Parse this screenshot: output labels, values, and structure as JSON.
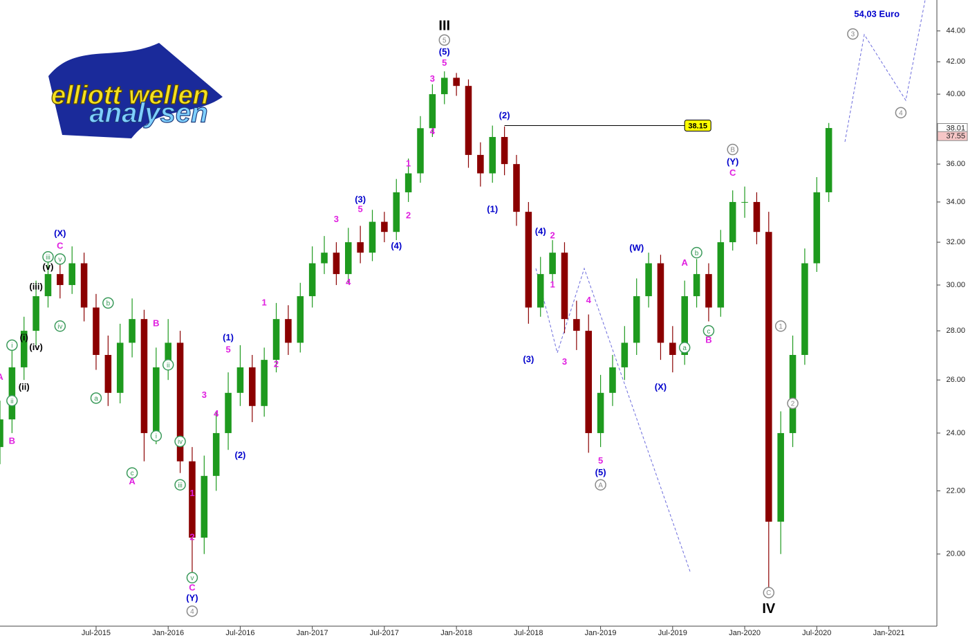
{
  "logo": {
    "line1": "elliott wellen",
    "line2": "analysen"
  },
  "chart_data": {
    "type": "candlestick",
    "x": [
      "2014-11",
      "2014-12",
      "2015-01",
      "2015-02",
      "2015-03",
      "2015-04",
      "2015-05",
      "2015-06",
      "2015-07",
      "2015-08",
      "2015-09",
      "2015-10",
      "2015-11",
      "2015-12",
      "2016-01",
      "2016-02",
      "2016-03",
      "2016-04",
      "2016-05",
      "2016-06",
      "2016-07",
      "2016-08",
      "2016-09",
      "2016-10",
      "2016-11",
      "2016-12",
      "2017-01",
      "2017-02",
      "2017-03",
      "2017-04",
      "2017-05",
      "2017-06",
      "2017-07",
      "2017-08",
      "2017-09",
      "2017-10",
      "2017-11",
      "2017-12",
      "2018-01",
      "2018-02",
      "2018-03",
      "2018-04",
      "2018-05",
      "2018-06",
      "2018-07",
      "2018-08",
      "2018-09",
      "2018-10",
      "2018-11",
      "2018-12",
      "2019-01",
      "2019-02",
      "2019-03",
      "2019-04",
      "2019-05",
      "2019-06",
      "2019-07",
      "2019-08",
      "2019-09",
      "2019-10",
      "2019-11",
      "2019-12",
      "2020-01",
      "2020-02",
      "2020-03",
      "2020-04",
      "2020-05",
      "2020-06",
      "2020-07",
      "2020-08"
    ],
    "open": [
      23.5,
      24.5,
      26.5,
      28,
      29.5,
      30.5,
      30,
      31,
      29,
      27,
      25.5,
      27.5,
      28.5,
      24,
      26.5,
      27.5,
      23,
      20.5,
      22.5,
      24,
      25.5,
      26.5,
      25,
      26.8,
      28.5,
      27.5,
      29.5,
      31,
      31.5,
      30.5,
      32,
      31.5,
      33,
      32.5,
      34.5,
      35.5,
      38,
      40,
      41,
      40.5,
      36.5,
      35.5,
      37.5,
      36,
      33.5,
      29,
      30.5,
      31.5,
      28.5,
      28,
      24,
      25.5,
      26.5,
      27.5,
      29.5,
      31,
      27.5,
      27,
      29.5,
      30.5,
      29,
      32,
      34,
      34,
      32.5,
      21,
      24,
      27,
      31,
      34.5
    ],
    "high": [
      25.2,
      27.2,
      28.6,
      30.2,
      31.1,
      31.2,
      31.8,
      31.5,
      29.6,
      27.8,
      28.3,
      29.4,
      28.9,
      27.3,
      28.5,
      28,
      23.5,
      23.2,
      24.8,
      26.3,
      27.4,
      27,
      27.3,
      29.2,
      29.1,
      30.1,
      31.8,
      32.3,
      32,
      32.7,
      32.8,
      33.6,
      33.5,
      35.2,
      36.3,
      38.7,
      40.6,
      41.4,
      41.3,
      40.9,
      37.2,
      38.15,
      38.1,
      36.5,
      34,
      31.3,
      32.1,
      32,
      29.3,
      28.7,
      26.2,
      27,
      28.2,
      30.3,
      31.5,
      31.4,
      28.2,
      30.2,
      31.2,
      31,
      32.6,
      34.6,
      34.8,
      34.5,
      33.5,
      24.8,
      27.8,
      31.7,
      35.3,
      38.3
    ],
    "low": [
      22.9,
      24,
      26,
      27.4,
      29,
      29.4,
      29.6,
      28.4,
      26.4,
      25,
      25.1,
      26.9,
      23,
      23.6,
      26,
      22.6,
      19.4,
      20,
      22,
      23.4,
      25,
      24.4,
      24.6,
      26.3,
      27,
      27.1,
      29,
      30.5,
      30,
      30.1,
      31,
      31.1,
      32,
      32.1,
      34,
      35,
      37.5,
      39.4,
      39.9,
      35.8,
      34.8,
      35,
      35.4,
      32.8,
      28.3,
      28.6,
      30,
      27.9,
      27.2,
      23.3,
      23.5,
      25,
      26,
      27,
      29,
      26.8,
      26.3,
      26.6,
      29,
      28.4,
      28.6,
      31.6,
      33.2,
      31.9,
      18.9,
      20,
      23.5,
      26.6,
      30.6,
      34
    ],
    "close": [
      24.5,
      26.5,
      28,
      29.5,
      30.5,
      30,
      31,
      29,
      27,
      25.5,
      27.5,
      28.5,
      24,
      26.5,
      27.5,
      23,
      20.5,
      22.5,
      24,
      25.5,
      26.5,
      25,
      26.8,
      28.5,
      27.5,
      29.5,
      31,
      31.5,
      30.5,
      32,
      31.5,
      33,
      32.5,
      34.5,
      35.5,
      38,
      40,
      41,
      40.5,
      36.5,
      35.5,
      37.5,
      36,
      33.5,
      29,
      30.5,
      31.5,
      28.5,
      28,
      24,
      25.5,
      26.5,
      27.5,
      29.5,
      31,
      27.5,
      27,
      29.5,
      30.5,
      29,
      32,
      34,
      34,
      32.5,
      21,
      24,
      27,
      31,
      34.5,
      38.01
    ],
    "up_color": "#1e9a1e",
    "down_color": "#8b0000",
    "log_scale": true,
    "ylim": [
      17.94,
      46.1
    ],
    "yticks": [
      {
        "value": 20,
        "label": "20.00"
      },
      {
        "value": 22,
        "label": "22.00"
      },
      {
        "value": 24,
        "label": "24.00"
      },
      {
        "value": 26,
        "label": "26.00"
      },
      {
        "value": 28,
        "label": "28.00"
      },
      {
        "value": 30,
        "label": "30.00"
      },
      {
        "value": 32,
        "label": "32.00"
      },
      {
        "value": 34,
        "label": "34.00"
      },
      {
        "value": 36,
        "label": "36.00"
      },
      {
        "value": 38,
        "label": "38.00"
      },
      {
        "value": 40,
        "label": "40.00"
      },
      {
        "value": 42,
        "label": "42.00"
      },
      {
        "value": 44,
        "label": "44.00"
      }
    ],
    "xlim": [
      "2014-11",
      "2021-05"
    ],
    "xticks": [
      {
        "value": "2015-07",
        "label": "Jul-2015"
      },
      {
        "value": "2016-01",
        "label": "Jan-2016"
      },
      {
        "value": "2016-07",
        "label": "Jul-2016"
      },
      {
        "value": "2017-01",
        "label": "Jan-2017"
      },
      {
        "value": "2017-07",
        "label": "Jul-2017"
      },
      {
        "value": "2018-01",
        "label": "Jan-2018"
      },
      {
        "value": "2018-07",
        "label": "Jul-2018"
      },
      {
        "value": "2019-01",
        "label": "Jan-2019"
      },
      {
        "value": "2019-07",
        "label": "Jul-2019"
      },
      {
        "value": "2020-01",
        "label": "Jan-2020"
      },
      {
        "value": "2020-07",
        "label": "Jul-2020"
      },
      {
        "value": "2021-01",
        "label": "Jan-2021"
      }
    ],
    "level": {
      "value": 38.15,
      "from": "2018-05",
      "to": "2019-08",
      "color": "#ffff00"
    },
    "price_labels": [
      {
        "value": 38.01,
        "color": "#ffffff"
      },
      {
        "value": 37.55,
        "color": "#f6c6c6"
      }
    ],
    "annotations": [
      {
        "text": "54,03 Euro",
        "x": "2020-12",
        "y": 45.1,
        "color": "#0000cc"
      },
      {
        "text": "III",
        "x": "2017-12",
        "y": 44.3,
        "color": "#000000",
        "big": true
      },
      {
        "text": "5",
        "x": "2017-12",
        "y": 43.4,
        "color": "#888888",
        "circled": true
      },
      {
        "text": "(5)",
        "x": "2017-12",
        "y": 42.6,
        "color": "#0000cc"
      },
      {
        "text": "5",
        "x": "2017-12",
        "y": 41.9,
        "color": "#e020e0"
      },
      {
        "text": "3",
        "x": "2017-11",
        "y": 40.9,
        "color": "#e020e0"
      },
      {
        "text": "4",
        "x": "2017-11",
        "y": 37.8,
        "color": "#e020e0"
      },
      {
        "text": "(2)",
        "x": "2018-05",
        "y": 38.7,
        "color": "#0000cc"
      },
      {
        "text": "(1)",
        "x": "2018-04",
        "y": 33.6,
        "color": "#0000cc"
      },
      {
        "text": "(3)",
        "x": "2018-07",
        "y": 26.8,
        "color": "#0000cc"
      },
      {
        "text": "(4)",
        "x": "2018-08",
        "y": 32.5,
        "color": "#0000cc"
      },
      {
        "text": "2",
        "x": "2018-09",
        "y": 32.3,
        "color": "#e020e0"
      },
      {
        "text": "1",
        "x": "2018-09",
        "y": 30.0,
        "color": "#e020e0"
      },
      {
        "text": "3",
        "x": "2018-10",
        "y": 26.7,
        "color": "#e020e0"
      },
      {
        "text": "4",
        "x": "2018-12",
        "y": 29.3,
        "color": "#e020e0"
      },
      {
        "text": "5",
        "x": "2019-01",
        "y": 23.0,
        "color": "#e020e0"
      },
      {
        "text": "(5)",
        "x": "2019-01",
        "y": 22.6,
        "color": "#0000cc"
      },
      {
        "text": "A",
        "x": "2019-01",
        "y": 22.2,
        "color": "#888888",
        "circled": true
      },
      {
        "text": "(W)",
        "x": "2019-04",
        "y": 31.7,
        "color": "#0000cc"
      },
      {
        "text": "(X)",
        "x": "2019-06",
        "y": 25.7,
        "color": "#0000cc"
      },
      {
        "text": "A",
        "x": "2019-08",
        "y": 31.0,
        "color": "#e020e0"
      },
      {
        "text": "a",
        "x": "2019-08",
        "y": 27.3,
        "color": "#3a9a5a",
        "circled": true
      },
      {
        "text": "b",
        "x": "2019-09",
        "y": 31.5,
        "color": "#3a9a5a",
        "circled": true
      },
      {
        "text": "c",
        "x": "2019-10",
        "y": 28.0,
        "color": "#3a9a5a",
        "circled": true
      },
      {
        "text": "B",
        "x": "2019-10",
        "y": 27.6,
        "color": "#e020e0"
      },
      {
        "text": "B",
        "x": "2019-12",
        "y": 36.8,
        "color": "#888888",
        "circled": true
      },
      {
        "text": "(Y)",
        "x": "2019-12",
        "y": 36.1,
        "color": "#0000cc"
      },
      {
        "text": "C",
        "x": "2019-12",
        "y": 35.5,
        "color": "#e020e0"
      },
      {
        "text": "C",
        "x": "2020-03",
        "y": 18.87,
        "color": "#888888",
        "circled": true
      },
      {
        "text": "IV",
        "x": "2020-03",
        "y": 18.4,
        "color": "#000000",
        "big": true
      },
      {
        "text": "1",
        "x": "2020-04",
        "y": 28.2,
        "color": "#888888",
        "circled": true
      },
      {
        "text": "2",
        "x": "2020-05",
        "y": 25.1,
        "color": "#888888",
        "circled": true
      },
      {
        "text": "3",
        "x": "2020-10",
        "y": 43.8,
        "color": "#888888",
        "circled": true
      },
      {
        "text": "4",
        "x": "2021-02",
        "y": 38.9,
        "color": "#888888",
        "circled": true
      },
      {
        "text": "(X)",
        "x": "2015-04",
        "y": 32.4,
        "color": "#0000cc"
      },
      {
        "text": "C",
        "x": "2015-04",
        "y": 31.8,
        "color": "#e020e0"
      },
      {
        "text": "v",
        "x": "2015-04",
        "y": 31.2,
        "color": "#3a9a5a",
        "circled": true
      },
      {
        "text": "iii",
        "x": "2015-03",
        "y": 31.3,
        "color": "#3a9a5a",
        "circled": true
      },
      {
        "text": "(v)",
        "x": "2015-03",
        "y": 30.8,
        "color": "#000000"
      },
      {
        "text": "(iii)",
        "x": "2015-02",
        "y": 29.9,
        "color": "#000000"
      },
      {
        "text": "iv",
        "x": "2015-04",
        "y": 28.2,
        "color": "#3a9a5a",
        "circled": true
      },
      {
        "text": "(i)",
        "x": "2015-01",
        "y": 27.7,
        "color": "#000000"
      },
      {
        "text": "(iv)",
        "x": "2015-02",
        "y": 27.3,
        "color": "#000000"
      },
      {
        "text": "i",
        "x": "2014-12",
        "y": 27.4,
        "color": "#3a9a5a",
        "circled": true
      },
      {
        "text": "(ii)",
        "x": "2015-01",
        "y": 25.7,
        "color": "#000000"
      },
      {
        "text": "ii",
        "x": "2014-12",
        "y": 25.2,
        "color": "#3a9a5a",
        "circled": true
      },
      {
        "text": "A",
        "x": "2014-11",
        "y": 26.1,
        "color": "#e020e0"
      },
      {
        "text": "B",
        "x": "2014-12",
        "y": 23.7,
        "color": "#e020e0"
      },
      {
        "text": "b",
        "x": "2015-08",
        "y": 29.2,
        "color": "#3a9a5a",
        "circled": true
      },
      {
        "text": "a",
        "x": "2015-07",
        "y": 25.3,
        "color": "#3a9a5a",
        "circled": true
      },
      {
        "text": "B",
        "x": "2015-12",
        "y": 28.3,
        "color": "#e020e0"
      },
      {
        "text": "c",
        "x": "2015-10",
        "y": 22.6,
        "color": "#3a9a5a",
        "circled": true
      },
      {
        "text": "A",
        "x": "2015-10",
        "y": 22.3,
        "color": "#e020e0"
      },
      {
        "text": "ii",
        "x": "2016-01",
        "y": 26.6,
        "color": "#3a9a5a",
        "circled": true
      },
      {
        "text": "i",
        "x": "2015-12",
        "y": 23.9,
        "color": "#3a9a5a",
        "circled": true
      },
      {
        "text": "iv",
        "x": "2016-02",
        "y": 23.7,
        "color": "#3a9a5a",
        "circled": true
      },
      {
        "text": "iii",
        "x": "2016-02",
        "y": 22.2,
        "color": "#3a9a5a",
        "circled": true
      },
      {
        "text": "1",
        "x": "2016-03",
        "y": 21.9,
        "color": "#e020e0"
      },
      {
        "text": "2",
        "x": "2016-03",
        "y": 20.5,
        "color": "#e020e0"
      },
      {
        "text": "v",
        "x": "2016-03",
        "y": 19.3,
        "color": "#3a9a5a",
        "circled": true
      },
      {
        "text": "C",
        "x": "2016-03",
        "y": 19.0,
        "color": "#e020e0"
      },
      {
        "text": "(Y)",
        "x": "2016-03",
        "y": 18.7,
        "color": "#0000cc"
      },
      {
        "text": "4",
        "x": "2016-03",
        "y": 18.35,
        "color": "#888888",
        "circled": true
      },
      {
        "text": "3",
        "x": "2016-04",
        "y": 25.4,
        "color": "#e020e0"
      },
      {
        "text": "4",
        "x": "2016-05",
        "y": 24.7,
        "color": "#e020e0"
      },
      {
        "text": "(1)",
        "x": "2016-06",
        "y": 27.7,
        "color": "#0000cc"
      },
      {
        "text": "5",
        "x": "2016-06",
        "y": 27.2,
        "color": "#e020e0"
      },
      {
        "text": "(2)",
        "x": "2016-07",
        "y": 23.2,
        "color": "#0000cc"
      },
      {
        "text": "1",
        "x": "2016-09",
        "y": 29.2,
        "color": "#e020e0"
      },
      {
        "text": "2",
        "x": "2016-10",
        "y": 26.6,
        "color": "#e020e0"
      },
      {
        "text": "3",
        "x": "2017-03",
        "y": 33.1,
        "color": "#e020e0"
      },
      {
        "text": "4",
        "x": "2017-04",
        "y": 30.1,
        "color": "#e020e0"
      },
      {
        "text": "(3)",
        "x": "2017-05",
        "y": 34.1,
        "color": "#0000cc"
      },
      {
        "text": "5",
        "x": "2017-05",
        "y": 33.6,
        "color": "#e020e0"
      },
      {
        "text": "(4)",
        "x": "2017-08",
        "y": 31.8,
        "color": "#0000cc"
      },
      {
        "text": "1",
        "x": "2017-09",
        "y": 36.0,
        "color": "#e020e0"
      },
      {
        "text": "2",
        "x": "2017-09",
        "y": 33.3,
        "color": "#e020e0"
      }
    ]
  }
}
